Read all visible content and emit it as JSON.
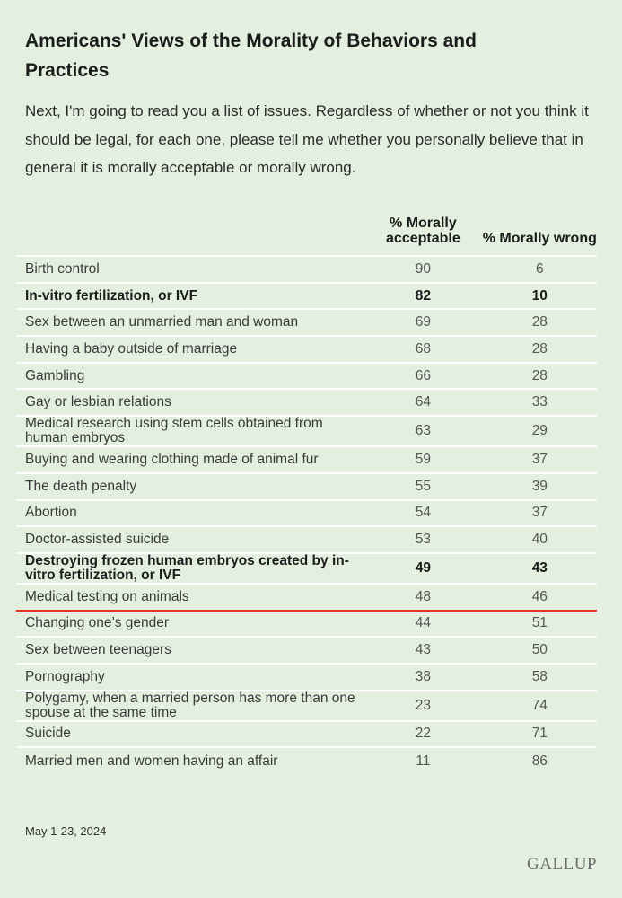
{
  "header": {
    "title": "Americans' Views of the Morality of Behaviors and Practices",
    "subtitle": "Next, I'm going to read you a list of issues. Regardless of whether or not you think it should be legal, for each one, please tell me whether you personally believe that in general it is morally acceptable or morally wrong."
  },
  "table": {
    "columns": [
      "% Morally acceptable",
      "% Morally wrong"
    ],
    "rows": [
      {
        "label": "Birth control",
        "acceptable": 90,
        "wrong": 6
      },
      {
        "label": "In-vitro fertilization, or IVF",
        "acceptable": 82,
        "wrong": 10,
        "bold": true
      },
      {
        "label": "Sex between an unmarried man and woman",
        "acceptable": 69,
        "wrong": 28
      },
      {
        "label": "Having a baby outside of marriage",
        "acceptable": 68,
        "wrong": 28
      },
      {
        "label": "Gambling",
        "acceptable": 66,
        "wrong": 28
      },
      {
        "label": "Gay or lesbian relations",
        "acceptable": 64,
        "wrong": 33
      },
      {
        "label": "Medical research using stem cells obtained from human embryos",
        "acceptable": 63,
        "wrong": 29
      },
      {
        "label": "Buying and wearing clothing made of animal fur",
        "acceptable": 59,
        "wrong": 37
      },
      {
        "label": "The death penalty",
        "acceptable": 55,
        "wrong": 39
      },
      {
        "label": "Abortion",
        "acceptable": 54,
        "wrong": 37
      },
      {
        "label": "Doctor-assisted suicide",
        "acceptable": 53,
        "wrong": 40
      },
      {
        "label": "Destroying frozen human embryos created by in-vitro fertilization, or IVF",
        "acceptable": 49,
        "wrong": 43,
        "bold": true
      },
      {
        "label": "Medical testing on animals",
        "acceptable": 48,
        "wrong": 46,
        "underline": true
      },
      {
        "label": "Changing one’s gender",
        "acceptable": 44,
        "wrong": 51
      },
      {
        "label": "Sex between teenagers",
        "acceptable": 43,
        "wrong": 50
      },
      {
        "label": "Pornography",
        "acceptable": 38,
        "wrong": 58
      },
      {
        "label": "Polygamy, when a married person has more than one spouse at the same time",
        "acceptable": 23,
        "wrong": 74
      },
      {
        "label": "Suicide",
        "acceptable": 22,
        "wrong": 71
      },
      {
        "label": "Married men and women having an affair",
        "acceptable": 11,
        "wrong": 86
      }
    ]
  },
  "footer": {
    "note": "May 1-23, 2024",
    "logo": "GALLUP"
  }
}
